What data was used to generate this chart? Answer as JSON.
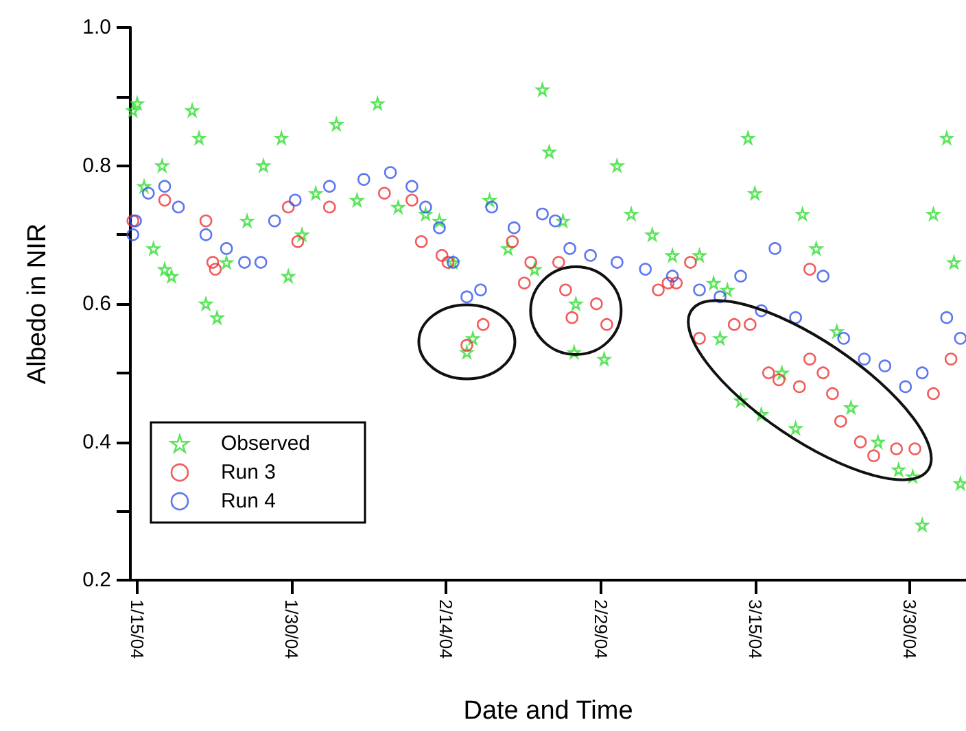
{
  "chart_data": {
    "type": "scatter",
    "xlabel": "Date and Time",
    "ylabel": "Albedo in NIR",
    "xlim": [
      "--01-14T08:00",
      "--04-04T11:00"
    ],
    "xticks": [
      {
        "value": "--01-15",
        "label": "1/15/04"
      },
      {
        "value": "--01-30",
        "label": "1/30/04"
      },
      {
        "value": "--02-14",
        "label": "2/14/04"
      },
      {
        "value": "--02-29",
        "label": "2/29/04"
      },
      {
        "value": "--03-15",
        "label": "3/15/04"
      },
      {
        "value": "--03-30",
        "label": "3/30/04"
      }
    ],
    "ylim": [
      0.2,
      1.0
    ],
    "yticks": [
      0.2,
      {
        "value": 0.3,
        "label": null
      },
      0.4,
      {
        "value": 0.5,
        "label": null
      },
      0.6,
      {
        "value": 0.7,
        "label": null
      },
      0.8,
      {
        "value": 0.9,
        "label": null
      },
      {
        "value": 1.0,
        "label": "1.0"
      }
    ],
    "grid": false,
    "legend": "bottom left",
    "series": [
      {
        "name": "Observed",
        "color": "#33dd33",
        "marker": "star",
        "x": [
          "--01-14T14:00",
          "--01-15T00:00",
          "--01-15T16:00",
          "--01-16T14:00",
          "--01-17T10:00",
          "--01-17T16:00",
          "--01-18T08:00",
          "--01-20T08:00",
          "--01-21T00:00",
          "--01-21T16:00",
          "--01-22T18:00",
          "--01-23T16:00",
          "--01-25T16:00",
          "--01-27T06:00",
          "--01-29T00:00",
          "--01-29T16:00",
          "--01-31T00:00",
          "--02-01T08:00",
          "--02-03T08:00",
          "--02-05T08:00",
          "--02-07T08:00",
          "--02-09T08:00",
          "--02-12T00:00",
          "--02-13T08:00",
          "--02-14T16:00",
          "--02-16T00:00",
          "--02-16T14:00",
          "--02-18T05:00",
          "--02-20T00:00",
          "--02-22T14:00",
          "--02-23T08:00",
          "--02-24T00:00",
          "--02-25T08:00",
          "--02-26T10:00",
          "--02-26T14:00",
          "--02-29T08:00",
          "--03-01T14:00",
          "--03-02T23:00",
          "--03-05T00:00",
          "--03-06T23:00",
          "--03-09T14:00",
          "--03-10T23:00",
          "--03-11T14:00",
          "--03-12T07:00",
          "--03-13T14:00",
          "--03-14T07:00",
          "--03-14T23:00",
          "--03-15T14:00",
          "--03-17T14:00",
          "--03-18T22:00",
          "--03-19T14:00",
          "--03-20T22:00",
          "--03-22T22:00",
          "--03-24T07:00",
          "--03-26T22:00",
          "--03-28T22:00",
          "--03-30T07:00",
          "--03-31T05:00",
          "--04-01T07:00",
          "--04-02T14:00",
          "--04-03T07:00",
          "--04-03T22:00"
        ],
        "values": [
          0.88,
          0.89,
          0.77,
          0.68,
          0.8,
          0.65,
          0.64,
          0.88,
          0.84,
          0.6,
          0.58,
          0.66,
          0.72,
          0.8,
          0.84,
          0.64,
          0.7,
          0.76,
          0.86,
          0.75,
          0.89,
          0.74,
          0.73,
          0.72,
          0.66,
          0.53,
          0.55,
          0.75,
          0.68,
          0.65,
          0.91,
          0.82,
          0.72,
          0.53,
          0.6,
          0.52,
          0.8,
          0.73,
          0.7,
          0.67,
          0.67,
          0.63,
          0.55,
          0.62,
          0.46,
          0.84,
          0.76,
          0.44,
          0.5,
          0.42,
          0.73,
          0.68,
          0.56,
          0.45,
          0.4,
          0.36,
          0.35,
          0.28,
          0.73,
          0.84,
          0.66,
          0.34
        ]
      },
      {
        "name": "Run 3",
        "color": "#ee3333",
        "marker": "circle",
        "x": [
          "--01-14T14:00",
          "--01-17T16:00",
          "--01-21T16:00",
          "--01-22T08:00",
          "--01-22T14:00",
          "--01-29T16:00",
          "--01-30T14:00",
          "--02-02T16:00",
          "--02-08T00:00",
          "--02-10T16:00",
          "--02-11T14:00",
          "--02-13T14:00",
          "--02-14T04:00",
          "--02-16T00:00",
          "--02-17T14:00",
          "--02-20T10:00",
          "--02-21T14:00",
          "--02-22T05:00",
          "--02-24T22:00",
          "--02-25T14:00",
          "--02-26T05:00",
          "--02-28T14:00",
          "--02-29T14:00",
          "--03-05T14:00",
          "--03-06T13:00",
          "--03-07T08:00",
          "--03-08T17:00",
          "--03-09T14:00",
          "--03-12T23:00",
          "--03-14T12:00",
          "--03-16T07:00",
          "--03-17T07:00",
          "--03-19T07:00",
          "--03-20T07:00",
          "--03-20T07:00",
          "--03-21T14:00",
          "--03-22T12:00",
          "--03-23T07:00",
          "--03-25T05:00",
          "--03-26T12:00",
          "--03-28T17:00",
          "--03-30T12:00",
          "--04-01T07:00",
          "--04-03T00:00"
        ],
        "values": [
          0.72,
          0.75,
          0.72,
          0.66,
          0.65,
          0.74,
          0.69,
          0.74,
          0.76,
          0.75,
          0.69,
          0.67,
          0.66,
          0.54,
          0.57,
          0.69,
          0.63,
          0.66,
          0.66,
          0.62,
          0.58,
          0.6,
          0.57,
          0.62,
          0.63,
          0.63,
          0.66,
          0.55,
          0.57,
          0.57,
          0.5,
          0.49,
          0.48,
          0.52,
          0.65,
          0.5,
          0.47,
          0.43,
          0.4,
          0.38,
          0.39,
          0.39,
          0.47,
          0.52
        ]
      },
      {
        "name": "Run 4",
        "color": "#3355ee",
        "marker": "circle",
        "x": [
          "--01-14T14:00",
          "--01-14T20:00",
          "--01-16T02:00",
          "--01-17T16:00",
          "--01-19T00:00",
          "--01-21T16:00",
          "--01-23T16:00",
          "--01-25T10:00",
          "--01-27T00:00",
          "--01-28T08:00",
          "--01-30T08:00",
          "--02-02T16:00",
          "--02-06T00:00",
          "--02-08T14:00",
          "--02-10T16:00",
          "--02-12T00:00",
          "--02-13T08:00",
          "--02-14T16:00",
          "--02-16T00:00",
          "--02-17T08:00",
          "--02-18T10:00",
          "--02-20T14:00",
          "--02-23T08:00",
          "--02-24T14:00",
          "--02-26T00:00",
          "--02-28T00:00",
          "--03-01T14:00",
          "--03-04T08:00",
          "--03-06T23:00",
          "--03-09T14:00",
          "--03-11T14:00",
          "--03-13T14:00",
          "--03-15T14:00",
          "--03-16T22:00",
          "--03-18T22:00",
          "--03-21T14:00",
          "--03-23T14:00",
          "--03-25T14:00",
          "--03-27T14:00",
          "--03-29T14:00",
          "--03-31T05:00",
          "--04-02T14:00",
          "--04-03T22:00"
        ],
        "values": [
          0.7,
          0.72,
          0.76,
          0.77,
          0.74,
          0.7,
          0.68,
          0.66,
          0.66,
          0.72,
          0.75,
          0.77,
          0.78,
          0.79,
          0.77,
          0.74,
          0.71,
          0.66,
          0.61,
          0.62,
          0.74,
          0.71,
          0.73,
          0.72,
          0.68,
          0.67,
          0.66,
          0.65,
          0.64,
          0.62,
          0.61,
          0.64,
          0.59,
          0.68,
          0.58,
          0.64,
          0.55,
          0.52,
          0.51,
          0.48,
          0.5,
          0.58,
          0.55
        ]
      }
    ]
  }
}
